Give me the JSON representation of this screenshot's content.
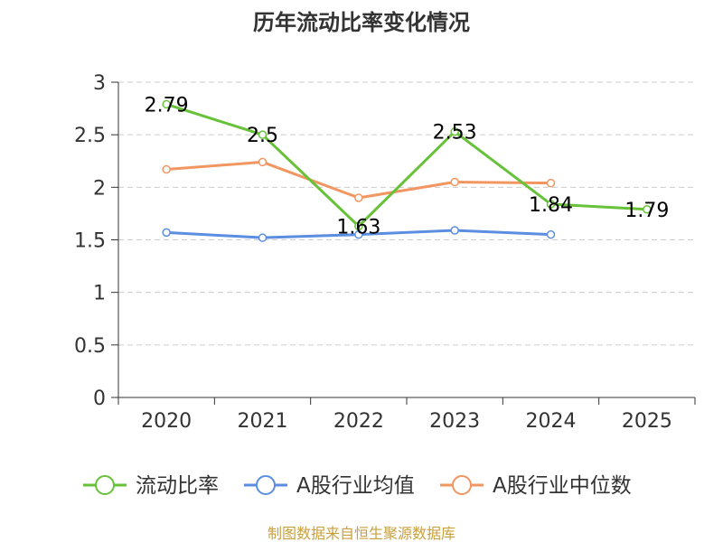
{
  "chart_data": {
    "type": "line",
    "title": "历年流动比率变化情况",
    "categories": [
      "2020",
      "2021",
      "2022",
      "2023",
      "2024",
      "2025"
    ],
    "ylim": [
      0,
      3
    ],
    "yticks": [
      "0",
      "0.5",
      "1",
      "1.5",
      "2",
      "2.5",
      "3"
    ],
    "grid": true,
    "legend_position": "bottom",
    "series": [
      {
        "name": "流动比率",
        "color": "#67c23a",
        "values": [
          2.79,
          2.5,
          1.63,
          2.53,
          1.84,
          1.79
        ],
        "labels": [
          "2.79",
          "2.5",
          "1.63",
          "2.53",
          "1.84",
          "1.79"
        ]
      },
      {
        "name": "A股行业均值",
        "color": "#5b8ee0",
        "values": [
          1.57,
          1.52,
          1.55,
          1.59,
          1.55,
          null
        ]
      },
      {
        "name": "A股行业中位数",
        "color": "#f29661",
        "values": [
          2.17,
          2.24,
          1.9,
          2.05,
          2.04,
          null
        ]
      }
    ],
    "source": "制图数据来自恒生聚源数据库"
  }
}
